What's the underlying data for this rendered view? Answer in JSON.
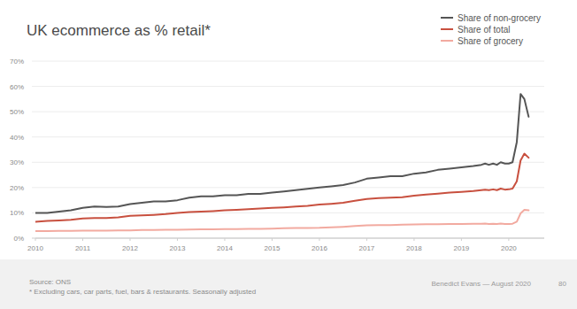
{
  "chart_data": {
    "type": "line",
    "title": "UK ecommerce as % retail*",
    "x": [
      2010,
      2010.25,
      2010.5,
      2010.75,
      2011,
      2011.25,
      2011.5,
      2011.75,
      2012,
      2012.25,
      2012.5,
      2012.75,
      2013,
      2013.25,
      2013.5,
      2013.75,
      2014,
      2014.25,
      2014.5,
      2014.75,
      2015,
      2015.25,
      2015.5,
      2015.75,
      2016,
      2016.25,
      2016.5,
      2016.75,
      2017,
      2017.25,
      2017.5,
      2017.75,
      2018,
      2018.25,
      2018.5,
      2018.75,
      2019,
      2019.25,
      2019.42,
      2019.5,
      2019.58,
      2019.67,
      2019.75,
      2019.83,
      2019.92,
      2020,
      2020.08,
      2020.17,
      2020.25,
      2020.33,
      2020.42
    ],
    "series": [
      {
        "name": "Share of non-grocery",
        "color": "#555555",
        "values": [
          10,
          10,
          10.5,
          11,
          12,
          12.5,
          12.3,
          12.5,
          13.5,
          14,
          14.5,
          14.5,
          15,
          16,
          16.5,
          16.5,
          17,
          17,
          17.5,
          17.5,
          18,
          18.5,
          19,
          19.5,
          20,
          20.5,
          21,
          22,
          23.5,
          24,
          24.5,
          24.5,
          25.5,
          26,
          27,
          27.5,
          28,
          28.5,
          29,
          29.5,
          29,
          29.5,
          29,
          30,
          29.5,
          29.5,
          30,
          38,
          57,
          55,
          48
        ]
      },
      {
        "name": "Share of total",
        "color": "#c8503f",
        "values": [
          6.5,
          6.8,
          7,
          7.3,
          7.8,
          8,
          8,
          8.2,
          8.8,
          9,
          9.2,
          9.5,
          10,
          10.3,
          10.5,
          10.7,
          11,
          11.2,
          11.5,
          11.7,
          12,
          12.2,
          12.5,
          12.8,
          13.3,
          13.6,
          14,
          14.8,
          15.5,
          15.8,
          16,
          16.2,
          16.8,
          17.2,
          17.6,
          18,
          18.3,
          18.6,
          19,
          19.2,
          19,
          19.3,
          19,
          19.6,
          19.2,
          19.3,
          19.6,
          22.5,
          30.7,
          33.4,
          31.8
        ]
      },
      {
        "name": "Share of grocery",
        "color": "#f2aaa0",
        "values": [
          2.8,
          2.8,
          2.9,
          2.9,
          3,
          3,
          3,
          3.1,
          3.1,
          3.2,
          3.2,
          3.3,
          3.3,
          3.4,
          3.5,
          3.5,
          3.6,
          3.6,
          3.7,
          3.7,
          3.8,
          3.9,
          4,
          4,
          4.1,
          4.3,
          4.5,
          4.8,
          5.1,
          5.2,
          5.2,
          5.3,
          5.4,
          5.5,
          5.5,
          5.6,
          5.6,
          5.7,
          5.7,
          5.8,
          5.6,
          5.7,
          5.6,
          5.8,
          5.6,
          5.6,
          5.7,
          6.5,
          9.8,
          11.2,
          11
        ]
      }
    ],
    "xlim": [
      2010,
      2020.75
    ],
    "xticks": [
      2010,
      2011,
      2012,
      2013,
      2014,
      2015,
      2016,
      2017,
      2018,
      2019,
      2020
    ],
    "ylim": [
      0,
      70
    ],
    "yticks": [
      {
        "value": 0,
        "label": "0%"
      },
      {
        "value": 10,
        "label": "10%"
      },
      {
        "value": 20,
        "label": "20%"
      },
      {
        "value": 30,
        "label": "30%"
      },
      {
        "value": 40,
        "label": "40%"
      },
      {
        "value": 50,
        "label": "50%"
      },
      {
        "value": 60,
        "label": "60%"
      },
      {
        "value": 70,
        "label": "70%"
      }
    ],
    "grid": true,
    "legend": "top-right",
    "footer": {
      "source": "Source: ONS",
      "note": "* Excluding cars, car parts, fuel, bars & restaurants. Seasonally adjusted",
      "credit": "Benedict Evans — August 2020",
      "page": "80"
    }
  }
}
